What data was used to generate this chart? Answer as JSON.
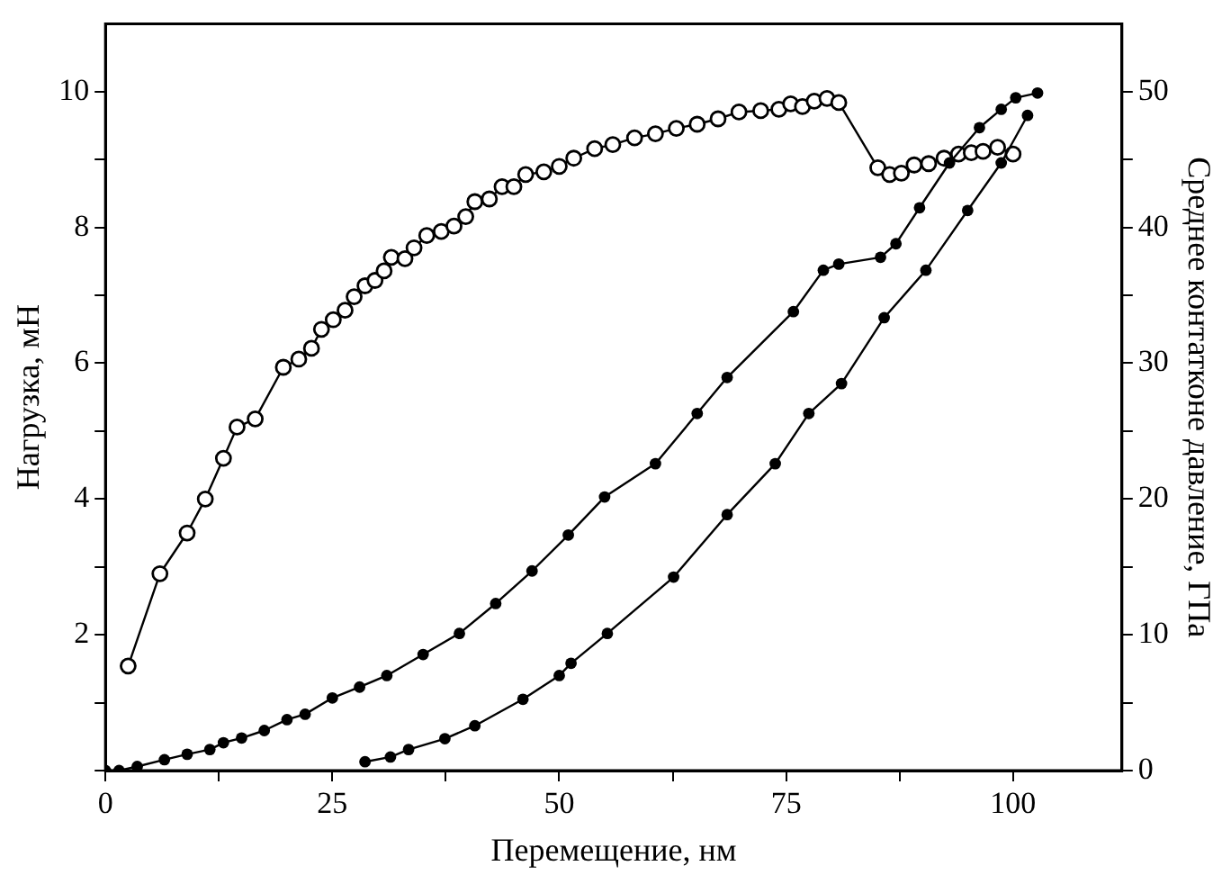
{
  "chart_data": {
    "type": "line",
    "xlabel": "Перемещение, нм",
    "ylabel": "Нагрузка, мН",
    "y2label": "Среднее контатконе давление, ГПа",
    "xlim": [
      0,
      112
    ],
    "xticks": [
      0,
      {
        "value": 12.5,
        "label": null
      },
      25,
      {
        "value": 37.5,
        "label": null
      },
      50,
      {
        "value": 62.5,
        "label": null
      },
      75,
      {
        "value": 87.5,
        "label": null
      },
      100
    ],
    "ylim": [
      0,
      11
    ],
    "yticks": [
      {
        "value": 0,
        "label": null
      },
      {
        "value": 1,
        "label": null
      },
      2,
      {
        "value": 3,
        "label": null
      },
      4,
      {
        "value": 5,
        "label": null
      },
      6,
      {
        "value": 7,
        "label": null
      },
      8,
      {
        "value": 9,
        "label": null
      },
      10
    ],
    "y2lim": [
      0,
      55
    ],
    "y2ticks": [
      0,
      {
        "value": 5,
        "label": null
      },
      10,
      {
        "value": 15,
        "label": null
      },
      20,
      {
        "value": 25,
        "label": null
      },
      30,
      {
        "value": 35,
        "label": null
      },
      40,
      {
        "value": 45,
        "label": null
      },
      50
    ],
    "grid": false,
    "legend": false,
    "marker": "circle",
    "line_style": "solid",
    "series": [
      {
        "color": "#000000",
        "x": [
          0,
          1.5,
          3.5,
          6.5,
          9,
          11.5,
          13,
          15,
          17.5,
          20,
          22,
          25,
          28,
          31,
          35,
          39,
          43,
          47,
          51,
          55,
          60.6,
          65.2,
          68.5,
          75.8,
          79.1,
          80.8,
          85.4,
          87.1,
          89.7,
          93,
          96.3,
          98.7,
          100.3,
          102.7
        ],
        "values": [
          0,
          0,
          0.06,
          0.16,
          0.24,
          0.31,
          0.41,
          0.48,
          0.59,
          0.75,
          0.83,
          1.07,
          1.23,
          1.4,
          1.71,
          2.02,
          2.46,
          2.94,
          3.47,
          4.03,
          4.52,
          5.26,
          5.79,
          6.76,
          7.37,
          7.46,
          7.56,
          7.76,
          8.29,
          8.95,
          9.47,
          9.74,
          9.91,
          9.98
        ]
      },
      {
        "color": "#000000",
        "x": [
          101.6,
          98.7,
          95,
          90.4,
          85.8,
          81.1,
          77.5,
          73.8,
          68.5,
          62.6,
          55.3,
          51.3,
          50,
          46,
          40.7,
          37.4,
          33.4,
          31.4,
          28.6
        ],
        "values": [
          9.65,
          8.95,
          8.25,
          7.37,
          6.67,
          5.7,
          5.26,
          4.52,
          3.77,
          2.85,
          2.02,
          1.58,
          1.4,
          1.05,
          0.66,
          0.47,
          0.31,
          0.2,
          0.13
        ]
      },
      {
        "color": "#000000",
        "axis": "y2",
        "x": [
          2.5,
          6,
          9,
          11,
          13,
          14.5,
          16.5,
          19.6,
          21.3,
          22.7,
          23.8,
          25.1,
          26.4,
          27.4,
          28.6,
          29.7,
          30.7,
          31.5,
          33,
          34,
          35.4,
          37,
          38.4,
          39.7,
          40.7,
          42.3,
          43.7,
          45,
          46.3,
          48.3,
          50,
          51.6,
          53.9,
          55.9,
          58.3,
          60.6,
          62.9,
          65.2,
          67.5,
          69.8,
          72.2,
          74.2,
          75.5,
          76.8,
          78.1,
          79.5,
          80.8,
          85.1,
          86.4,
          87.7,
          89.1,
          90.7,
          92.4,
          94,
          95.4,
          96.7,
          98.3,
          100
        ],
        "values": [
          7.7,
          14.5,
          17.5,
          20,
          23,
          25.3,
          25.9,
          29.7,
          30.3,
          31.1,
          32.5,
          33.2,
          33.9,
          34.9,
          35.7,
          36.1,
          36.8,
          37.8,
          37.7,
          38.5,
          39.4,
          39.7,
          40.1,
          40.8,
          41.9,
          42.1,
          43,
          43,
          43.9,
          44.1,
          44.5,
          45.1,
          45.8,
          46.1,
          46.6,
          46.9,
          47.3,
          47.6,
          48,
          48.5,
          48.6,
          48.7,
          49.1,
          48.9,
          49.3,
          49.5,
          49.2,
          44.4,
          43.9,
          44,
          44.6,
          44.7,
          45.1,
          45.4,
          45.5,
          45.6,
          45.9,
          45.4
        ]
      }
    ]
  }
}
